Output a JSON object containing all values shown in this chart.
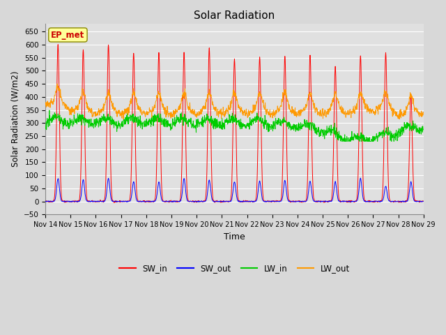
{
  "title": "Solar Radiation",
  "xlabel": "Time",
  "ylabel": "Solar Radiation (W/m2)",
  "ylim": [
    -50,
    680
  ],
  "yticks": [
    -50,
    0,
    50,
    100,
    150,
    200,
    250,
    300,
    350,
    400,
    450,
    500,
    550,
    600,
    650
  ],
  "x_tick_labels": [
    "Nov 14",
    "Nov 15",
    "Nov 16",
    "Nov 17",
    "Nov 18",
    "Nov 19",
    "Nov 20",
    "Nov 21",
    "Nov 22",
    "Nov 23",
    "Nov 24",
    "Nov 25",
    "Nov 26",
    "Nov 27",
    "Nov 28",
    "Nov 29"
  ],
  "colors": {
    "SW_in": "#ff0000",
    "SW_out": "#0000ff",
    "LW_in": "#00cc00",
    "LW_out": "#ff9900"
  },
  "annotation_text": "EP_met",
  "annotation_color": "#cc0000",
  "annotation_bg": "#ffff99",
  "background_color": "#d8d8d8",
  "plot_bg_color": "#e0e0e0",
  "grid_color": "#ffffff",
  "sw_in_peaks": [
    600,
    580,
    600,
    568,
    570,
    570,
    585,
    545,
    552,
    555,
    558,
    515,
    557,
    568,
    405
  ],
  "sw_out_peaks": [
    88,
    83,
    88,
    76,
    75,
    88,
    82,
    75,
    78,
    80,
    78,
    75,
    88,
    58,
    75
  ],
  "legend_labels": [
    "SW_in",
    "SW_out",
    "LW_in",
    "LW_out"
  ]
}
